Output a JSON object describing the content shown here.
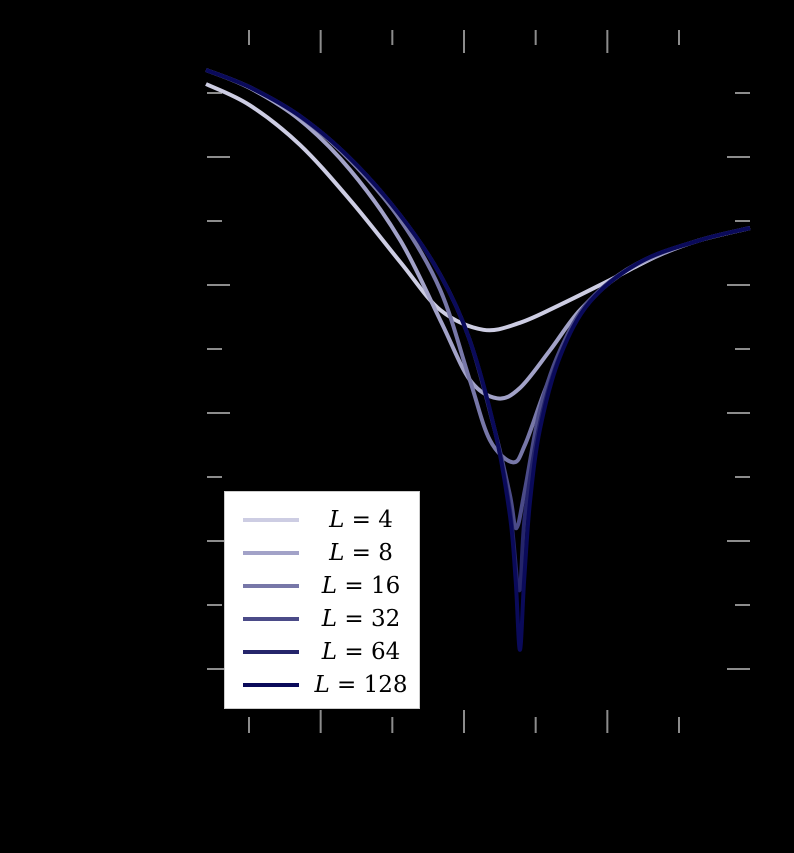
{
  "chart_data": {
    "type": "line",
    "title": "",
    "xlabel": "",
    "ylabel": "",
    "background": "#000000",
    "grid": false,
    "legend_position": "lower left",
    "xlim": [
      -3.6,
      4.0
    ],
    "ylim": [
      -0.6,
      10.3
    ],
    "x_ticks": {
      "major": [
        -2,
        0,
        2
      ],
      "minor": [
        -3,
        -1,
        1,
        3
      ],
      "labels_visible": false
    },
    "y_ticks": {
      "major": [
        0,
        2,
        4,
        6,
        8
      ],
      "minor": [
        1,
        3,
        5,
        7,
        9
      ],
      "labels_visible": false
    },
    "tick_color": "#8c8c8c",
    "series": [
      {
        "name": "L = 4",
        "L": 4,
        "color": "#cdcde3",
        "x": [
          -3.6,
          -2.99,
          -2.29,
          -1.59,
          -0.89,
          -0.33,
          0.27,
          0.78,
          1.34,
          2.04,
          2.73,
          3.29,
          3.99
        ],
        "y": [
          9.14,
          8.81,
          8.19,
          7.33,
          6.36,
          5.61,
          5.3,
          5.41,
          5.69,
          6.08,
          6.47,
          6.7,
          6.89
        ]
      },
      {
        "name": "L = 8",
        "L": 8,
        "color": "#a2a2c8",
        "x": [
          -3.6,
          -2.99,
          -2.29,
          -1.59,
          -0.89,
          -0.33,
          0.08,
          0.46,
          0.78,
          1.2,
          1.62,
          2.18,
          2.73,
          3.29,
          3.99
        ],
        "y": [
          9.36,
          9.08,
          8.58,
          7.8,
          6.7,
          5.45,
          4.52,
          4.23,
          4.39,
          4.98,
          5.61,
          6.16,
          6.47,
          6.7,
          6.89
        ]
      },
      {
        "name": "L = 16",
        "L": 16,
        "color": "#7777a8",
        "x": [
          -3.6,
          -2.99,
          -2.29,
          -1.59,
          -0.89,
          -0.33,
          0.08,
          0.36,
          0.68,
          0.85,
          1.13,
          1.48,
          1.9,
          2.46,
          3.29,
          3.99
        ],
        "y": [
          9.36,
          9.09,
          8.63,
          7.95,
          7.02,
          5.92,
          4.52,
          3.58,
          3.23,
          3.5,
          4.36,
          5.3,
          5.92,
          6.36,
          6.7,
          6.89
        ]
      },
      {
        "name": "L = 32",
        "L": 32,
        "color": "#4b4b88",
        "x": [
          -3.6,
          -2.99,
          -2.29,
          -1.59,
          -0.89,
          -0.33,
          0.08,
          0.43,
          0.64,
          0.73,
          0.85,
          1.06,
          1.34,
          1.76,
          2.46,
          3.29,
          3.99
        ],
        "y": [
          9.36,
          9.09,
          8.64,
          7.98,
          7.09,
          6.16,
          5.14,
          3.73,
          2.72,
          2.2,
          2.8,
          4.05,
          4.98,
          5.77,
          6.36,
          6.7,
          6.89
        ]
      },
      {
        "name": "L = 64",
        "L": 64,
        "color": "#25256b",
        "x": [
          -3.6,
          -2.99,
          -2.29,
          -1.59,
          -0.89,
          -0.33,
          0.08,
          0.43,
          0.64,
          0.77,
          0.85,
          1.06,
          1.34,
          1.76,
          2.46,
          3.29,
          3.99
        ],
        "y": [
          9.36,
          9.09,
          8.64,
          7.98,
          7.09,
          6.16,
          5.14,
          3.73,
          2.5,
          1.23,
          2.4,
          3.85,
          4.9,
          5.74,
          6.36,
          6.7,
          6.89
        ]
      },
      {
        "name": "L = 128",
        "L": 128,
        "color": "#0a0a5a",
        "x": [
          -3.6,
          -2.99,
          -2.29,
          -1.59,
          -0.89,
          -0.33,
          0.08,
          0.43,
          0.64,
          0.72,
          0.78,
          0.84,
          0.92,
          1.06,
          1.34,
          1.76,
          2.46,
          3.29,
          3.99
        ],
        "y": [
          9.36,
          9.09,
          8.64,
          7.98,
          7.09,
          6.16,
          5.14,
          3.73,
          2.4,
          1.4,
          0.3,
          1.4,
          2.6,
          3.75,
          4.88,
          5.74,
          6.36,
          6.7,
          6.89
        ]
      }
    ]
  },
  "legend": {
    "items": [
      {
        "var": "L",
        "eq": " = ",
        "value": "4",
        "color": "#cdcde3"
      },
      {
        "var": "L",
        "eq": " = ",
        "value": "8",
        "color": "#a2a2c8"
      },
      {
        "var": "L",
        "eq": " = ",
        "value": "16",
        "color": "#7777a8"
      },
      {
        "var": "L",
        "eq": " = ",
        "value": "32",
        "color": "#4b4b88"
      },
      {
        "var": "L",
        "eq": " = ",
        "value": "64",
        "color": "#25256b"
      },
      {
        "var": "L",
        "eq": " = ",
        "value": "128",
        "color": "#0a0a5a"
      }
    ]
  }
}
